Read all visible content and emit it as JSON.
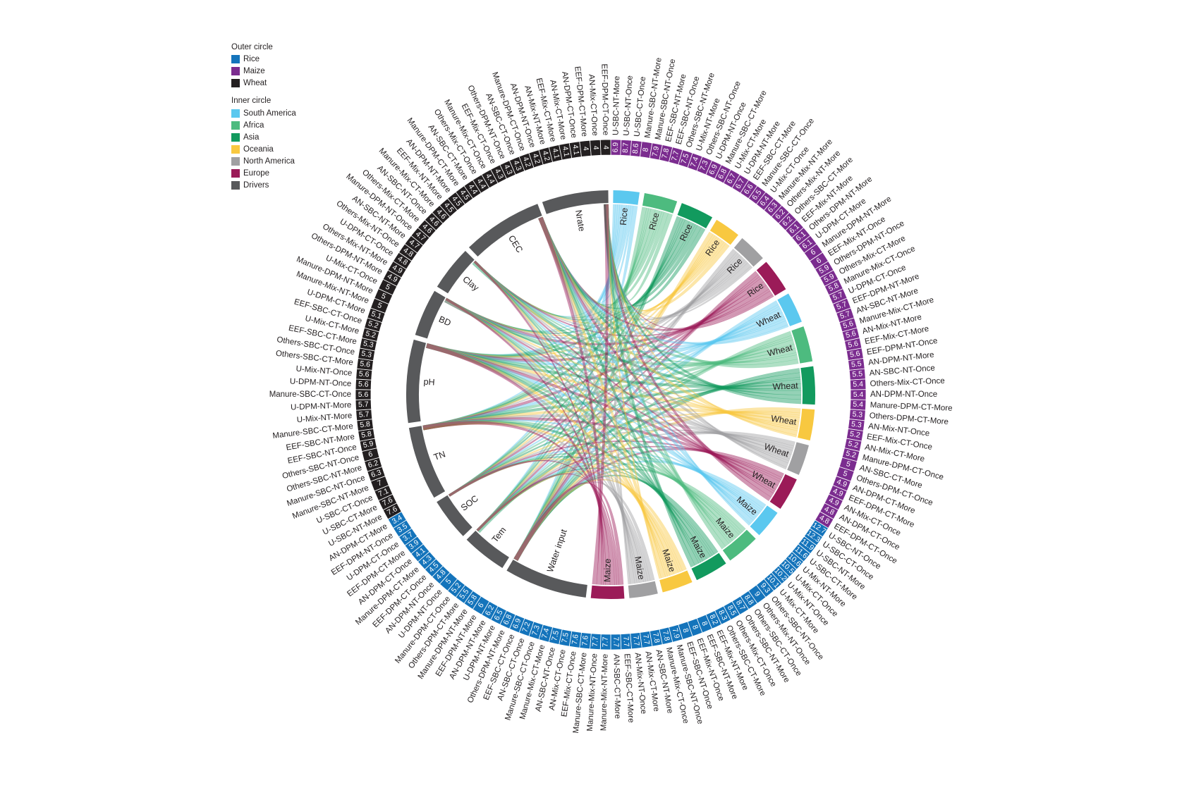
{
  "chart_data": {
    "type": "chord",
    "outer_ring": {
      "title": "Outer circle",
      "series": [
        {
          "name": "Rice",
          "color": "#1474bb",
          "categories": [
            "U-SBC-NT-Once",
            "U-SBC-CT-Once",
            "U-SBC-NT-More",
            "U-SBC-CT-More",
            "U-Mix-NT-More",
            "U-Mix-CT-Once",
            "U-Mix-NT-Once",
            "U-Mix-CT-More",
            "Others-SBC-NT-Once",
            "Others-Mix-NT-Once",
            "Others-SBC-CT-Once",
            "Others-SBC-NT-More",
            "Others-Mix-CT-Once",
            "Others-SBC-CT-More",
            "EEF-Mix-NT-More",
            "EEF-SBC-NT-More",
            "EEF-Mix-NT-Once",
            "EEF-SBC-NT-Once",
            "Manure-SBC-NT-Once",
            "Manure-Mix-CT-Once",
            "AN-SBC-NT-More",
            "AN-Mix-CT-More",
            "AN-Mix-NT-Once",
            "EEF-SBC-CT-More",
            "AN-SBC-CT-More",
            "Manure-Mix-NT-More",
            "Manure-Mix-NT-Once",
            "Manure-SBC-CT-More",
            "EEF-Mix-CT-Once",
            "AN-Mix-CT-Once",
            "AN-SBC-NT-Once",
            "Manure-Mix-CT-More",
            "Manure-SBC-CT-Once",
            "AN-SBC-CT-Once",
            "EEF-SBC-CT-Once",
            "Others-DPM-NT-More",
            "U-DPM-NT-More",
            "AN-DPM-NT-More",
            "EEF-DPM-NT-More",
            "Manure-DPM-NT-More",
            "Others-DPM-CT-More",
            "Manure-DPM-CT-Once",
            "U-DPM-NT-Once",
            "AN-DPM-NT-Once",
            "EEF-DPM-CT-Once",
            "Manure-DPM-CT-More",
            "AN-DPM-CT-Once",
            "EEF-DPM-CT-More",
            "U-DPM-CT-Once",
            "EEF-DPM-NT-Once",
            "AN-DPM-CT-More"
          ],
          "values": [
            12.7,
            12.3,
            11.9,
            11.6,
            10.6,
            10.5,
            10.2,
            10.1,
            9.3,
            9.0,
            8.8,
            8.7,
            8.5,
            8.3,
            8.2,
            8.0,
            8.0,
            8.0,
            7.9,
            7.8,
            7.8,
            7.7,
            7.7,
            7.7,
            7.7,
            7.7,
            7.7,
            7.6,
            7.6,
            7.5,
            7.5,
            7.4,
            7.3,
            7.2,
            6.9,
            6.8,
            6.5,
            6.2,
            6.0,
            5.8,
            5.5,
            5.2,
            5.0,
            4.8,
            4.5,
            4.3,
            4.1,
            3.9,
            3.7,
            3.5,
            3.4
          ]
        },
        {
          "name": "Maize",
          "color": "#7b2c8f",
          "categories": [
            "U-SBC-NT-More",
            "U-SBC-NT-Once",
            "U-SBC-CT-Once",
            "Manure-SBC-NT-More",
            "Manure-SBC-NT-Once",
            "EEF-SBC-NT-More",
            "EEF-SBC-NT-Once",
            "Others-SBC-NT-More",
            "U-Mix-NT-More",
            "Others-SBC-NT-Once",
            "U-DPM-NT-Once",
            "Manure-SBC-CT-More",
            "U-Mix-CT-More",
            "U-DPM-NT-More",
            "EEF-SBC-CT-More",
            "Manure-SBC-CT-Once",
            "U-Mix-CT-Once",
            "Manure-Mix-NT-More",
            "Others-Mix-NT-More",
            "Others-SBC-CT-More",
            "EEF-Mix-NT-More",
            "Others-DPM-NT-More",
            "U-DPM-CT-More",
            "Manure-DPM-NT-More",
            "EEF-Mix-NT-Once",
            "Others-DPM-NT-Once",
            "Others-Mix-CT-More",
            "Manure-Mix-CT-Once",
            "U-DPM-CT-Once",
            "EEF-DPM-NT-More",
            "AN-SBC-NT-More",
            "Manure-Mix-CT-More",
            "AN-Mix-NT-More",
            "EEF-Mix-CT-More",
            "EEF-DPM-NT-Once",
            "AN-DPM-NT-More",
            "AN-SBC-NT-Once",
            "Others-Mix-CT-Once",
            "AN-DPM-NT-Once",
            "Manure-DPM-CT-More",
            "Others-DPM-CT-More",
            "AN-Mix-NT-Once",
            "EEF-Mix-CT-Once",
            "AN-Mix-CT-More",
            "Manure-DPM-CT-Once",
            "AN-SBC-CT-More",
            "Others-DPM-CT-Once",
            "AN-DPM-CT-More",
            "EEF-DPM-CT-More",
            "AN-Mix-CT-Once",
            "AN-DPM-CT-Once",
            "EEF-DPM-CT-Once"
          ],
          "values": [
            6.9,
            8.7,
            8.6,
            8.0,
            7.9,
            7.8,
            7.7,
            7.5,
            7.4,
            7.3,
            6.9,
            6.8,
            6.7,
            6.7,
            6.6,
            6.5,
            6.4,
            6.3,
            6.2,
            6.2,
            6.1,
            6.1,
            6.1,
            6.0,
            6.0,
            5.9,
            5.9,
            5.8,
            5.7,
            5.7,
            5.7,
            5.6,
            5.6,
            5.6,
            5.6,
            5.5,
            5.5,
            5.4,
            5.4,
            5.4,
            5.3,
            5.3,
            5.2,
            5.2,
            5.2,
            5.0,
            5.0,
            4.9,
            4.9,
            4.9,
            4.8,
            4.8
          ]
        },
        {
          "name": "Wheat",
          "color": "#231f20",
          "categories": [
            "U-SBC-NT-More",
            "U-SBC-CT-More",
            "U-SBC-CT-Once",
            "Manure-SBC-NT-More",
            "Manure-SBC-NT-Once",
            "Others-SBC-NT-More",
            "Others-SBC-NT-Once",
            "EEF-SBC-NT-Once",
            "EEF-SBC-NT-More",
            "Manure-SBC-CT-More",
            "U-Mix-NT-More",
            "U-DPM-NT-More",
            "Manure-SBC-CT-Once",
            "U-DPM-NT-Once",
            "U-Mix-NT-Once",
            "Others-SBC-CT-More",
            "Others-SBC-CT-Once",
            "EEF-SBC-CT-More",
            "U-Mix-CT-More",
            "EEF-SBC-CT-Once",
            "U-DPM-CT-More",
            "Manure-Mix-NT-More",
            "Manure-DPM-NT-More",
            "U-Mix-CT-Once",
            "Others-DPM-NT-More",
            "Others-Mix-NT-More",
            "U-DPM-CT-Once",
            "Others-Mix-NT-Once",
            "AN-SBC-NT-More",
            "Manure-DPM-NT-Once",
            "Others-Mix-CT-More",
            "AN-SBC-NT-Once",
            "Manure-Mix-CT-More",
            "EEF-Mix-NT-More",
            "AN-DPM-NT-More",
            "Manure-DPM-CT-More",
            "AN-SBC-CT-More",
            "Others-Mix-CT-Once",
            "Manure-Mix-CT-Once",
            "EEF-Mix-CT-Once",
            "Others-DPM-NT-Once",
            "AN-SBC-CT-Once",
            "Manure-DPM-CT-Once",
            "AN-DPM-NT-Once",
            "AN-Mix-NT-More",
            "EEF-Mix-CT-More",
            "AN-Mix-CT-More",
            "AN-DPM-CT-Once",
            "EEF-DPM-CT-More",
            "AN-Mix-CT-Once",
            "EEF-DPM-CT-Once"
          ],
          "values": [
            7.6,
            7.6,
            7.1,
            7.0,
            6.3,
            6.2,
            6.0,
            5.9,
            5.8,
            5.8,
            5.7,
            5.7,
            5.6,
            5.6,
            5.6,
            5.6,
            5.3,
            5.3,
            5.2,
            5.2,
            5.1,
            5.0,
            5.0,
            5.0,
            4.9,
            4.9,
            4.8,
            4.8,
            4.7,
            4.7,
            4.6,
            4.6,
            4.6,
            4.5,
            4.5,
            4.5,
            4.4,
            4.4,
            4.4,
            4.3,
            4.3,
            4.3,
            4.2,
            4.2,
            4.2,
            4.1,
            4.1,
            4.1,
            4.0,
            4.0,
            4.0
          ]
        }
      ]
    },
    "inner_ring": {
      "title": "Inner circle",
      "regions": [
        {
          "name": "South America",
          "color": "#5bc8ef"
        },
        {
          "name": "Africa",
          "color": "#4dbb7f"
        },
        {
          "name": "Asia",
          "color": "#129a5e"
        },
        {
          "name": "Oceania",
          "color": "#f8c840"
        },
        {
          "name": "North America",
          "color": "#a0a0a2"
        },
        {
          "name": "Europe",
          "color": "#9b1b58"
        }
      ],
      "drivers": {
        "name": "Drivers",
        "color": "#58595b",
        "categories": [
          "Water input",
          "Tem",
          "SOC",
          "TN",
          "pH",
          "BD",
          "Clay",
          "CEC",
          "Nrate"
        ]
      },
      "crops": [
        {
          "name": "Rice",
          "weights": [
            [
              1,
              1,
              1,
              1,
              2,
              1,
              1,
              1,
              2
            ],
            [
              2,
              1,
              1,
              2,
              2,
              1,
              1,
              2,
              2
            ],
            [
              2,
              1,
              1,
              2,
              2,
              1,
              1,
              2,
              2
            ],
            [
              2,
              1,
              1,
              1,
              1,
              1,
              1,
              1,
              2
            ],
            [
              2,
              1,
              1,
              1,
              2,
              1,
              1,
              2,
              1
            ],
            [
              2,
              1,
              1,
              2,
              2,
              2,
              1,
              2,
              1
            ]
          ]
        },
        {
          "name": "Wheat",
          "weights": [
            [
              2,
              1,
              1,
              2,
              2,
              1,
              1,
              2,
              1
            ],
            [
              2,
              1,
              1,
              2,
              2,
              2,
              1,
              2,
              2
            ],
            [
              2,
              2,
              1,
              2,
              2,
              1,
              2,
              2,
              2
            ],
            [
              2,
              1,
              1,
              2,
              2,
              1,
              1,
              2,
              1
            ],
            [
              2,
              1,
              1,
              2,
              2,
              1,
              1,
              2,
              1
            ],
            [
              2,
              1,
              1,
              2,
              2,
              1,
              1,
              2,
              2
            ]
          ]
        },
        {
          "name": "Maize",
          "weights": [
            [
              2,
              1,
              1,
              1,
              2,
              1,
              1,
              2,
              1
            ],
            [
              2,
              1,
              1,
              2,
              2,
              1,
              1,
              2,
              2
            ],
            [
              2,
              1,
              1,
              2,
              2,
              1,
              1,
              2,
              2
            ],
            [
              2,
              1,
              1,
              2,
              2,
              1,
              1,
              2,
              1
            ],
            [
              2,
              1,
              1,
              1,
              2,
              1,
              1,
              2,
              1
            ],
            [
              2,
              1,
              1,
              2,
              2,
              1,
              1,
              2,
              2
            ]
          ]
        }
      ]
    }
  }
}
